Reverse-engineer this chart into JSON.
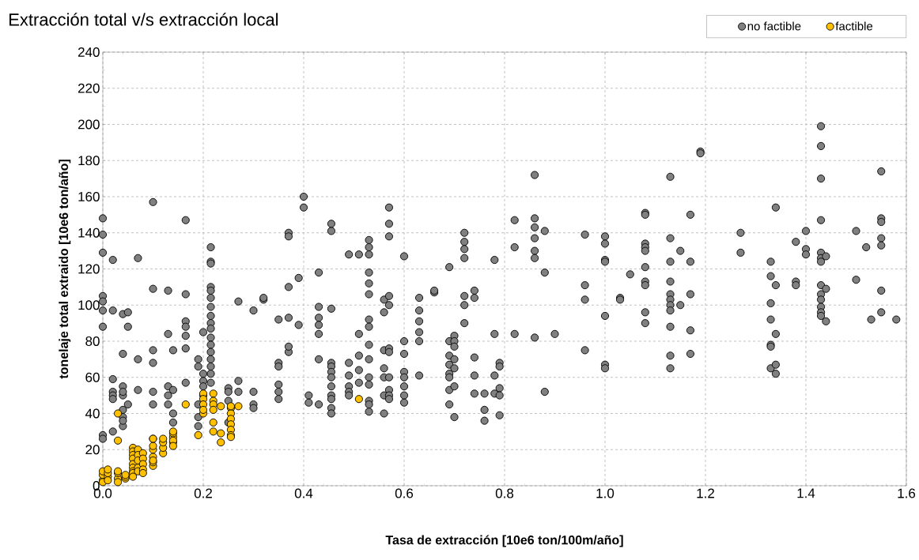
{
  "chart_data": {
    "type": "scatter",
    "title": "Extracción total v/s extracción local",
    "xlabel": "Tasa de extracción  [10e6 ton/100m/año]",
    "ylabel": "tonelaje total extraido [10e6 ton/año]",
    "xlim": [
      0,
      1.6
    ],
    "ylim": [
      0,
      240
    ],
    "xticks": [
      {
        "value": 0,
        "label": "0.0"
      },
      {
        "value": 0.2,
        "label": "0.2"
      },
      {
        "value": 0.4,
        "label": "0.4"
      },
      {
        "value": 0.6,
        "label": "0.6"
      },
      {
        "value": 0.8,
        "label": "0.8"
      },
      {
        "value": 1.0,
        "label": "1.0"
      },
      {
        "value": 1.2,
        "label": "1.2"
      },
      {
        "value": 1.4,
        "label": "1.4"
      },
      {
        "value": 1.6,
        "label": "1.6"
      }
    ],
    "yticks": [
      0,
      20,
      40,
      60,
      80,
      100,
      120,
      140,
      160,
      180,
      200,
      220,
      240
    ],
    "grid": true,
    "legend": "top right",
    "marker": "circle",
    "series": [
      {
        "name": "no factible",
        "color": "#808080",
        "x": [
          0,
          0,
          0,
          0,
          0,
          0,
          0,
          0,
          0,
          0.02,
          0.02,
          0.02,
          0.02,
          0.02,
          0.02,
          0.02,
          0.04,
          0.04,
          0.04,
          0.04,
          0.04,
          0.04,
          0.04,
          0.04,
          0.04,
          0.05,
          0.05,
          0.05,
          0.07,
          0.07,
          0.07,
          0.1,
          0.1,
          0.1,
          0.1,
          0.1,
          0.1,
          0.1,
          0.13,
          0.13,
          0.13,
          0.13,
          0.13,
          0.14,
          0.14,
          0.14,
          0.14,
          0.165,
          0.165,
          0.165,
          0.165,
          0.165,
          0.165,
          0.165,
          0.19,
          0.19,
          0.19,
          0.19,
          0.19,
          0.2,
          0.2,
          0.2,
          0.2,
          0.2,
          0.215,
          0.215,
          0.215,
          0.215,
          0.215,
          0.215,
          0.215,
          0.215,
          0.215,
          0.215,
          0.215,
          0.215,
          0.215,
          0.215,
          0.215,
          0.215,
          0.215,
          0.25,
          0.25,
          0.25,
          0.25,
          0.27,
          0.27,
          0.27,
          0.3,
          0.3,
          0.3,
          0.3,
          0.32,
          0.32,
          0.35,
          0.35,
          0.35,
          0.35,
          0.35,
          0.35,
          0.37,
          0.37,
          0.37,
          0.37,
          0.37,
          0.37,
          0.39,
          0.39,
          0.4,
          0.4,
          0.41,
          0.41,
          0.43,
          0.43,
          0.43,
          0.43,
          0.43,
          0.43,
          0.43,
          0.455,
          0.455,
          0.455,
          0.455,
          0.455,
          0.455,
          0.455,
          0.455,
          0.455,
          0.455,
          0.455,
          0.455,
          0.49,
          0.49,
          0.49,
          0.49,
          0.49,
          0.49,
          0.51,
          0.51,
          0.51,
          0.51,
          0.51,
          0.53,
          0.53,
          0.53,
          0.53,
          0.53,
          0.53,
          0.53,
          0.53,
          0.53,
          0.53,
          0.53,
          0.53,
          0.53,
          0.53,
          0.53,
          0.56,
          0.56,
          0.56,
          0.56,
          0.56,
          0.56,
          0.56,
          0.57,
          0.57,
          0.57,
          0.57,
          0.57,
          0.57,
          0.57,
          0.57,
          0.57,
          0.57,
          0.57,
          0.6,
          0.6,
          0.6,
          0.6,
          0.6,
          0.6,
          0.6,
          0.6,
          0.63,
          0.63,
          0.63,
          0.63,
          0.63,
          0.63,
          0.66,
          0.66,
          0.69,
          0.69,
          0.69,
          0.69,
          0.69,
          0.69,
          0.69,
          0.69,
          0.7,
          0.7,
          0.7,
          0.7,
          0.7,
          0.7,
          0.7,
          0.72,
          0.72,
          0.72,
          0.72,
          0.72,
          0.72,
          0.72,
          0.74,
          0.74,
          0.74,
          0.74,
          0.74,
          0.76,
          0.76,
          0.76,
          0.78,
          0.78,
          0.78,
          0.78,
          0.79,
          0.79,
          0.79,
          0.79,
          0.79,
          0.82,
          0.82,
          0.82,
          0.86,
          0.86,
          0.86,
          0.86,
          0.86,
          0.86,
          0.86,
          0.88,
          0.88,
          0.88,
          0.9,
          0.96,
          0.96,
          0.96,
          0.96,
          1.0,
          1.0,
          1.0,
          1.0,
          1.0,
          1.0,
          1.0,
          1.03,
          1.03,
          1.05,
          1.08,
          1.08,
          1.08,
          1.08,
          1.08,
          1.08,
          1.08,
          1.08,
          1.08,
          1.08,
          1.13,
          1.13,
          1.13,
          1.13,
          1.13,
          1.13,
          1.13,
          1.13,
          1.13,
          1.13,
          1.13,
          1.15,
          1.15,
          1.17,
          1.17,
          1.17,
          1.17,
          1.17,
          1.19,
          1.19,
          1.27,
          1.27,
          1.33,
          1.33,
          1.33,
          1.33,
          1.33,
          1.33,
          1.33,
          1.34,
          1.34,
          1.34,
          1.34,
          1.34,
          1.38,
          1.38,
          1.38,
          1.4,
          1.4,
          1.4,
          1.43,
          1.43,
          1.43,
          1.43,
          1.43,
          1.43,
          1.43,
          1.43,
          1.43,
          1.43,
          1.43,
          1.43,
          1.43,
          1.44,
          1.44,
          1.44,
          1.5,
          1.5,
          1.52,
          1.53,
          1.55,
          1.55,
          1.55,
          1.55,
          1.55,
          1.55,
          1.55,
          1.58
        ],
        "values": [
          148,
          139,
          129,
          105,
          102,
          97,
          88,
          28,
          26,
          125,
          97,
          52,
          50,
          48,
          59,
          30,
          95,
          55,
          50,
          42,
          38,
          33,
          36,
          73,
          52,
          88,
          96,
          45,
          126,
          70,
          53,
          157,
          109,
          75,
          68,
          52,
          45,
          26,
          108,
          84,
          55,
          50,
          45,
          53,
          75,
          35,
          40,
          147,
          106,
          91,
          88,
          83,
          76,
          57,
          70,
          66,
          45,
          38,
          33,
          62,
          58,
          55,
          50,
          85,
          132,
          124,
          123,
          110,
          108,
          104,
          99,
          94,
          90,
          87,
          82,
          78,
          74,
          70,
          66,
          62,
          57,
          54,
          52,
          47,
          35,
          102,
          58,
          52,
          45,
          43,
          97,
          52,
          103,
          104,
          92,
          68,
          66,
          56,
          52,
          48,
          140,
          138,
          110,
          93,
          74,
          77,
          115,
          89,
          160,
          154,
          50,
          46,
          118,
          99,
          93,
          89,
          84,
          70,
          45,
          145,
          141,
          98,
          68,
          66,
          63,
          60,
          55,
          50,
          48,
          43,
          40,
          128,
          68,
          61,
          55,
          52,
          50,
          128,
          84,
          72,
          64,
          57,
          136,
          132,
          128,
          118,
          112,
          106,
          92,
          88,
          78,
          70,
          60,
          56,
          47,
          45,
          41,
          103,
          96,
          75,
          65,
          60,
          50,
          40,
          154,
          145,
          138,
          105,
          100,
          76,
          74,
          60,
          53,
          50,
          48,
          127,
          80,
          73,
          63,
          60,
          55,
          50,
          46,
          104,
          97,
          91,
          85,
          80,
          61,
          107,
          108,
          121,
          80,
          72,
          67,
          62,
          60,
          53,
          45,
          83,
          80,
          77,
          70,
          65,
          55,
          38,
          140,
          135,
          131,
          126,
          105,
          100,
          90,
          104,
          108,
          71,
          61,
          51,
          51,
          42,
          36,
          125,
          84,
          51,
          61,
          68,
          66,
          54,
          50,
          39,
          147,
          132,
          84,
          172,
          148,
          143,
          137,
          130,
          126,
          82,
          141,
          118,
          52,
          84,
          139,
          111,
          103,
          75,
          138,
          134,
          125,
          124,
          94,
          67,
          65,
          104,
          103,
          117,
          151,
          150,
          134,
          132,
          130,
          121,
          113,
          111,
          96,
          90,
          171,
          137,
          124,
          113,
          106,
          103,
          100,
          97,
          88,
          72,
          65,
          130,
          100,
          150,
          124,
          106,
          86,
          73,
          185,
          184,
          140,
          129,
          124,
          116,
          101,
          92,
          78,
          77,
          65,
          154,
          111,
          84,
          67,
          62,
          135,
          113,
          111,
          141,
          131,
          128,
          199,
          188,
          170,
          147,
          129,
          126,
          124,
          111,
          106,
          103,
          99,
          96,
          94,
          127,
          109,
          91,
          141,
          114,
          132,
          92,
          174,
          148,
          146,
          137,
          133,
          108,
          96,
          92
        ]
      },
      {
        "name": "factible",
        "color": "#ffc000",
        "x": [
          0,
          0,
          0,
          0,
          0.01,
          0.01,
          0.01,
          0.01,
          0.03,
          0.03,
          0.03,
          0.03,
          0.03,
          0.03,
          0.045,
          0.045,
          0.045,
          0.06,
          0.06,
          0.06,
          0.06,
          0.06,
          0.06,
          0.06,
          0.06,
          0.06,
          0.07,
          0.07,
          0.07,
          0.07,
          0.07,
          0.08,
          0.08,
          0.08,
          0.08,
          0.08,
          0.1,
          0.1,
          0.1,
          0.1,
          0.1,
          0.1,
          0.1,
          0.12,
          0.12,
          0.12,
          0.12,
          0.14,
          0.14,
          0.14,
          0.14,
          0.14,
          0.14,
          0.165,
          0.19,
          0.2,
          0.2,
          0.2,
          0.2,
          0.2,
          0.22,
          0.22,
          0.22,
          0.22,
          0.22,
          0.22,
          0.235,
          0.235,
          0.235,
          0.255,
          0.255,
          0.255,
          0.255,
          0.255,
          0.255,
          0.255,
          0.255,
          0.27,
          0.51
        ],
        "values": [
          3,
          6,
          8,
          2,
          5,
          7,
          3,
          9,
          4,
          7,
          8,
          2,
          40,
          25,
          4,
          5,
          6,
          21,
          19,
          17,
          15,
          12,
          10,
          8,
          7,
          5,
          20,
          17,
          14,
          10,
          8,
          18,
          15,
          12,
          9,
          7,
          11,
          13,
          16,
          20,
          22,
          26,
          14,
          18,
          21,
          24,
          26,
          24,
          27,
          29,
          30,
          25,
          22,
          45,
          28,
          51,
          48,
          45,
          40,
          42,
          51,
          47,
          45,
          42,
          35,
          30,
          29,
          24,
          44,
          43,
          40,
          37,
          34,
          31,
          28,
          27,
          44,
          44,
          48
        ]
      }
    ]
  }
}
